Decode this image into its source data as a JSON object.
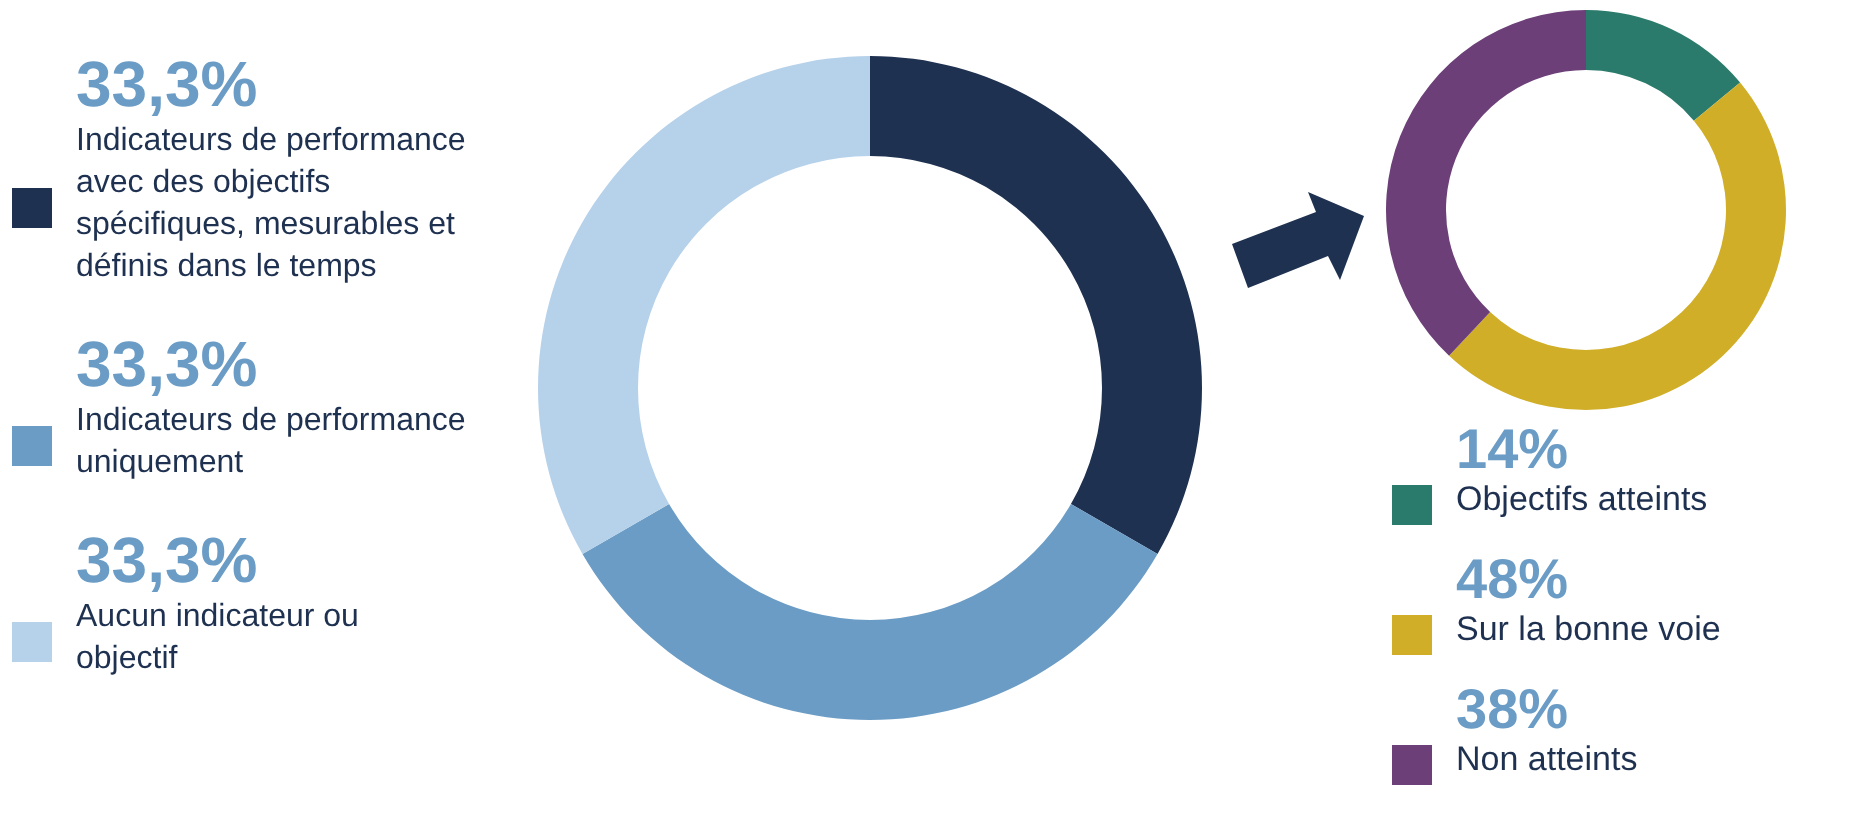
{
  "chart_data": [
    {
      "type": "donut",
      "categories": [
        "Indicateurs de performance avec des objectifs spécifiques, mesurables et définis dans le temps",
        "Indicateurs de performance uniquement",
        "Aucun indicateur ou objectif"
      ],
      "values": [
        33.3,
        33.3,
        33.3
      ],
      "value_labels": [
        "33,3%",
        "33,3%",
        "33,3%"
      ],
      "colors": [
        "#1f3150",
        "#6a9cc6",
        "#b6d1ea"
      ],
      "legend": "left"
    },
    {
      "type": "donut",
      "categories": [
        "Objectifs atteints",
        "Sur la bonne voie",
        "Non atteints"
      ],
      "values": [
        14,
        48,
        38
      ],
      "value_labels": [
        "14%",
        "48%",
        "38%"
      ],
      "colors": [
        "#2a7b6b",
        "#d1ae27",
        "#6c3f78"
      ],
      "legend": "bottom"
    }
  ]
}
